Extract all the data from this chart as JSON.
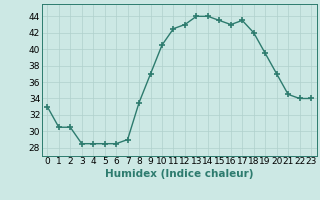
{
  "x": [
    0,
    1,
    2,
    3,
    4,
    5,
    6,
    7,
    8,
    9,
    10,
    11,
    12,
    13,
    14,
    15,
    16,
    17,
    18,
    19,
    20,
    21,
    22,
    23
  ],
  "y": [
    33,
    30.5,
    30.5,
    28.5,
    28.5,
    28.5,
    28.5,
    29,
    33.5,
    37,
    40.5,
    42.5,
    43,
    44,
    44,
    43.5,
    43,
    43.5,
    42,
    39.5,
    37,
    34.5,
    34,
    34
  ],
  "line_color": "#2d7b6e",
  "marker": "+",
  "marker_size": 4,
  "marker_lw": 1.2,
  "bg_color": "#cce8e4",
  "grid_color": "#b0d0cc",
  "xlabel": "Humidex (Indice chaleur)",
  "xlim": [
    -0.5,
    23.5
  ],
  "ylim": [
    27,
    45.5
  ],
  "yticks": [
    28,
    30,
    32,
    34,
    36,
    38,
    40,
    42,
    44
  ],
  "xtick_labels": [
    "0",
    "1",
    "2",
    "3",
    "4",
    "5",
    "6",
    "7",
    "8",
    "9",
    "10",
    "11",
    "12",
    "13",
    "14",
    "15",
    "16",
    "17",
    "18",
    "19",
    "20",
    "21",
    "22",
    "23"
  ],
  "xlabel_fontsize": 7.5,
  "tick_fontsize": 6.5,
  "line_width": 1.0
}
